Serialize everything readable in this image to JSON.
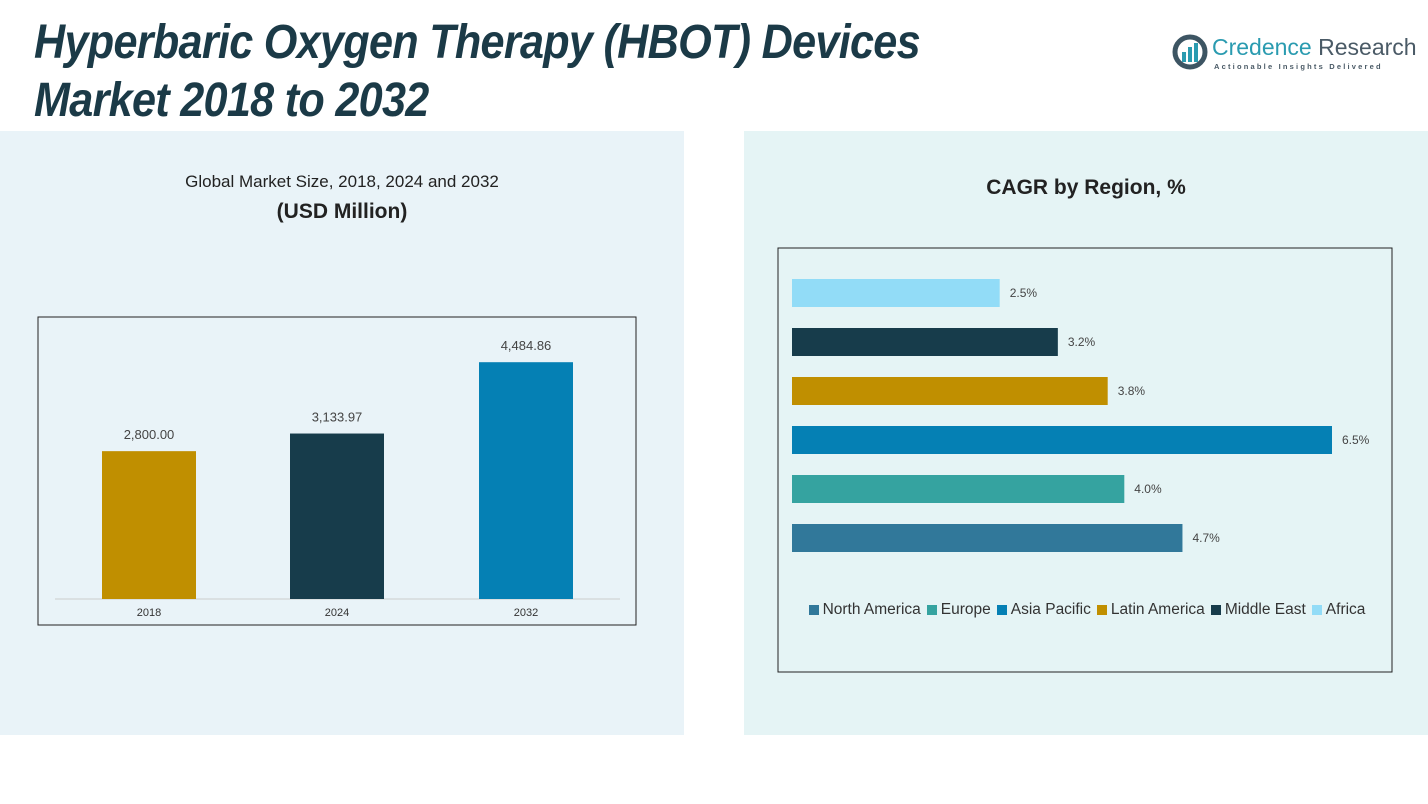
{
  "title_line1": "Hyperbaric Oxygen Therapy (HBOT) Devices",
  "title_line2": "Market 2018 to 2032",
  "logo": {
    "name_a": "Credence",
    "name_b": " Research",
    "tagline": "Actionable Insights Delivered"
  },
  "chart_data": [
    {
      "type": "bar",
      "title": "Global Market Size, 2018, 2024 and 2032",
      "subtitle": "(USD Million)",
      "categories": [
        "2018",
        "2024",
        "2032"
      ],
      "values": [
        2800.0,
        3133.97,
        4484.86
      ],
      "labels": [
        "2,800.00",
        "3,133.97",
        "4,484.86"
      ],
      "colors": [
        "#c08f00",
        "#173c4b",
        "#0580b4"
      ],
      "ylim": [
        0,
        5000
      ],
      "grid": false
    },
    {
      "type": "bar",
      "orientation": "horizontal",
      "title": "CAGR by Region, %",
      "categories": [
        "North America",
        "Europe",
        "Asia Pacific",
        "Latin America",
        "Middle East",
        "Africa"
      ],
      "values": [
        4.7,
        4.0,
        6.5,
        3.8,
        3.2,
        2.5
      ],
      "labels": [
        "4.7%",
        "4.0%",
        "6.5%",
        "3.8%",
        "3.2%",
        "2.5%"
      ],
      "colors": [
        "#31789a",
        "#35a3a0",
        "#0580b4",
        "#c08f00",
        "#173c4b",
        "#92dcf7"
      ],
      "xlim": [
        0,
        6.5
      ],
      "legend": "bottom",
      "grid": false
    }
  ]
}
